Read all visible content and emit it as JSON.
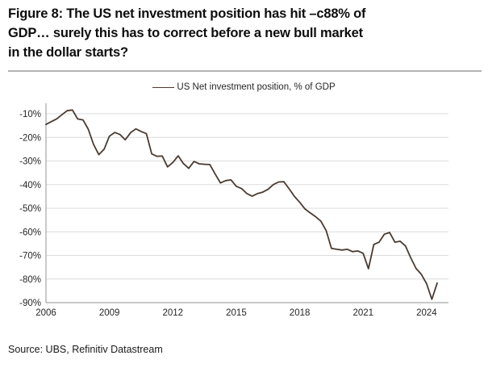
{
  "header": {
    "title_lines": [
      "Figure 8: The US net investment position has hit –c88% of",
      "GDP… surely this has to correct before a new bull market",
      "in the dollar starts?"
    ]
  },
  "legend": {
    "label": "US Net investment position, % of GDP"
  },
  "source": "Source: UBS, Refinitiv Datastream",
  "colors": {
    "line": "#4a3b32",
    "grid": "#dcdcdc",
    "axis": "#a6a6a6",
    "tick_text": "#262626"
  },
  "chart_data": {
    "type": "line",
    "title": "US Net investment position, % of GDP",
    "xlabel": "",
    "ylabel": "% of GDP",
    "frequency": "quarterly",
    "x_start_year": 2006,
    "x_tick_labels": [
      "2006",
      "2009",
      "2012",
      "2015",
      "2018",
      "2021",
      "2024"
    ],
    "y_tick_labels": [
      "-10%",
      "-20%",
      "-30%",
      "-40%",
      "-50%",
      "-60%",
      "-70%",
      "-80%",
      "-90%"
    ],
    "ylim": [
      -90,
      -5
    ],
    "grid": "horizontal",
    "legend_position": "top-center",
    "series": [
      {
        "name": "US Net investment position, % of GDP",
        "values": [
          -14.5,
          -13.3,
          -12.2,
          -10.4,
          -8.7,
          -8.4,
          -12.2,
          -12.6,
          -16.5,
          -23.0,
          -27.3,
          -25.0,
          -19.5,
          -17.9,
          -18.8,
          -21.0,
          -18.0,
          -16.4,
          -17.5,
          -18.4,
          -27.0,
          -28.0,
          -27.9,
          -32.5,
          -30.6,
          -27.8,
          -31.1,
          -33.1,
          -30.2,
          -31.2,
          -31.4,
          -31.5,
          -35.5,
          -39.3,
          -38.3,
          -38.0,
          -40.7,
          -41.7,
          -43.8,
          -44.9,
          -43.8,
          -43.2,
          -42.0,
          -40.0,
          -38.9,
          -38.8,
          -41.8,
          -45.0,
          -47.5,
          -50.3,
          -52.0,
          -53.6,
          -55.5,
          -59.5,
          -67.0,
          -67.4,
          -67.7,
          -67.4,
          -68.4,
          -68.1,
          -69.1,
          -75.6,
          -65.4,
          -64.4,
          -61.0,
          -60.3,
          -64.4,
          -64.0,
          -66.0,
          -71.0,
          -75.5,
          -78.0,
          -82.0,
          -88.6,
          -81.7
        ]
      }
    ]
  }
}
